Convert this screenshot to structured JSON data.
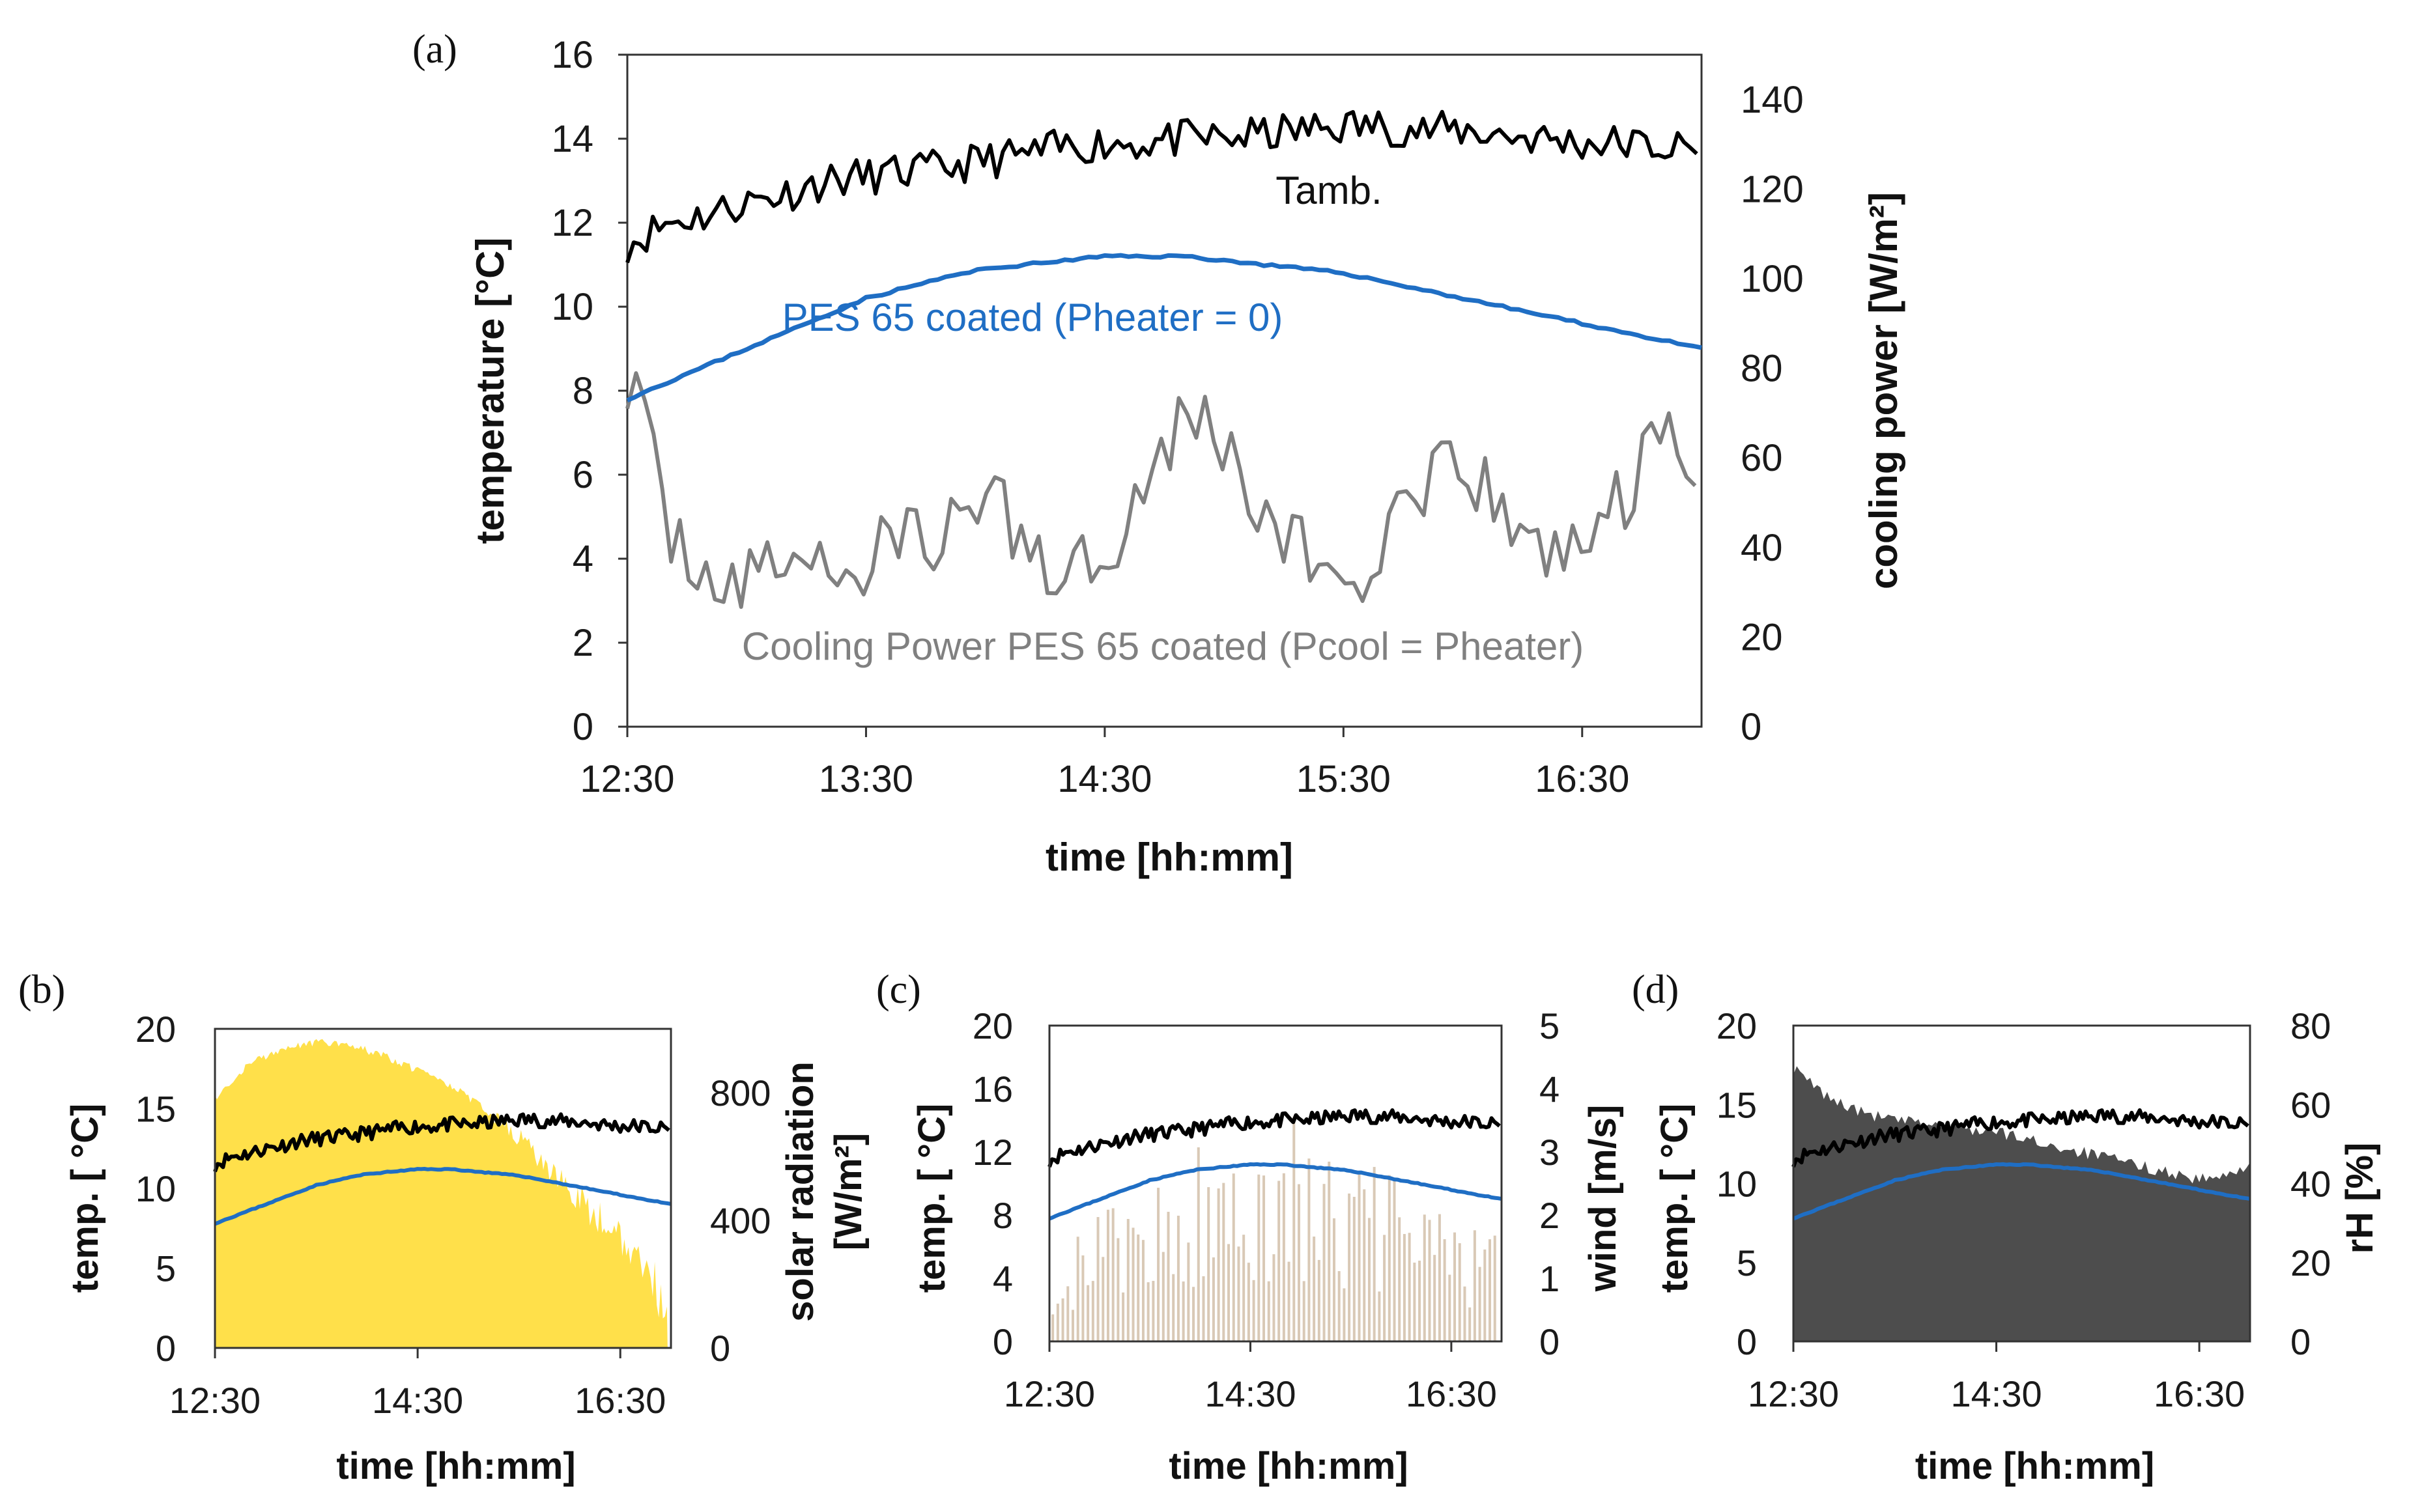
{
  "chart_data": [
    {
      "panel": "(a)",
      "type": "line",
      "xlabel": "time [hh:mm]",
      "ylabel": "temperature [°C]",
      "y2label": "cooling power [W/m²]",
      "xrange_min": [
        0,
        270
      ],
      "xticks": [
        "12:30",
        "13:30",
        "14:30",
        "15:30",
        "16:30"
      ],
      "ylim": [
        0,
        16
      ],
      "yticks": [
        "0",
        "2",
        "4",
        "6",
        "8",
        "10",
        "12",
        "14",
        "16"
      ],
      "y2lim": [
        0,
        150
      ],
      "y2ticks": [
        "0",
        "20",
        "40",
        "60",
        "80",
        "100",
        "120",
        "140"
      ],
      "series": [
        {
          "name": "Tamb.",
          "axis": "y",
          "color": "#000000",
          "x": [
            0,
            10,
            20,
            30,
            40,
            50,
            60,
            70,
            80,
            90,
            100,
            110,
            120,
            130,
            140,
            150,
            160,
            170,
            180,
            190,
            200,
            210,
            220,
            230,
            240,
            250,
            260,
            270
          ],
          "values": [
            11.5,
            12.0,
            12.2,
            12.5,
            12.7,
            13.0,
            13.1,
            13.2,
            13.3,
            13.5,
            13.6,
            13.8,
            13.9,
            13.9,
            14.0,
            14.0,
            14.1,
            14.2,
            14.3,
            14.3,
            14.2,
            14.2,
            14.1,
            14.0,
            13.9,
            13.9,
            13.8,
            13.7
          ]
        },
        {
          "name": "PES 65 coated (Pheater = 0)",
          "axis": "y",
          "color": "#1f6ec4",
          "x": [
            0,
            20,
            40,
            60,
            80,
            90,
            100,
            110,
            120,
            130,
            140,
            150,
            160,
            170,
            180,
            190,
            200,
            210,
            220,
            230,
            240,
            250,
            260,
            270
          ],
          "values": [
            7.8,
            8.6,
            9.4,
            10.2,
            10.7,
            10.9,
            11.0,
            11.1,
            11.2,
            11.2,
            11.2,
            11.1,
            11.0,
            10.9,
            10.8,
            10.6,
            10.4,
            10.2,
            10.0,
            9.8,
            9.6,
            9.4,
            9.2,
            9.0
          ]
        },
        {
          "name": "Cooling Power PES 65 coated (Pcool = Pheater)",
          "axis": "y2",
          "color": "#808080",
          "x": [
            0,
            10,
            20,
            30,
            40,
            50,
            60,
            70,
            80,
            90,
            100,
            110,
            120,
            130,
            140,
            150,
            160,
            170,
            180,
            190,
            200,
            210,
            220,
            230,
            240,
            250,
            260,
            270
          ],
          "values": [
            80,
            45,
            35,
            30,
            40,
            35,
            35,
            45,
            40,
            55,
            40,
            35,
            40,
            55,
            70,
            65,
            45,
            40,
            30,
            40,
            50,
            60,
            45,
            40,
            40,
            50,
            65,
            60
          ]
        }
      ],
      "annotations": [
        "Tamb.",
        "PES 65 coated (Pheater = 0)",
        "Cooling Power PES 65 coated (Pcool = Pheater)"
      ]
    },
    {
      "panel": "(b)",
      "type": "area",
      "xlabel": "time [hh:mm]",
      "ylabel": "temp. [ °C]",
      "y2label": "solar radiation [W/m²]",
      "xticks": [
        "12:30",
        "14:30",
        "16:30"
      ],
      "ylim": [
        0,
        20
      ],
      "yticks": [
        "0",
        "5",
        "10",
        "15",
        "20"
      ],
      "y2lim": [
        0,
        1000
      ],
      "y2ticks": [
        "0",
        "400",
        "800"
      ],
      "area_series": {
        "name": "solar radiation",
        "color": "#ffe04a",
        "x": [
          0,
          20,
          40,
          60,
          80,
          100,
          120,
          140,
          160,
          180,
          200,
          220,
          240,
          260,
          270
        ],
        "values": [
          790,
          900,
          950,
          970,
          960,
          930,
          880,
          830,
          770,
          690,
          600,
          500,
          400,
          280,
          150
        ]
      },
      "series_reference": [
        "Tamb.",
        "PES 65 coated (Pheater = 0)"
      ]
    },
    {
      "panel": "(c)",
      "type": "bar",
      "xlabel": "time [hh:mm]",
      "ylabel": "temp. [ °C]",
      "y2label": "wind [m/s]",
      "xticks": [
        "12:30",
        "14:30",
        "16:30"
      ],
      "ylim": [
        0,
        20
      ],
      "yticks": [
        "0",
        "4",
        "8",
        "12",
        "16",
        "20"
      ],
      "y2lim": [
        0,
        5
      ],
      "y2ticks": [
        "0",
        "1",
        "2",
        "3",
        "4",
        "5"
      ],
      "bar_series": {
        "name": "wind",
        "color": "#d9c9b6",
        "x": [
          0,
          20,
          40,
          60,
          80,
          100,
          120,
          140,
          160,
          180,
          200,
          220,
          240,
          260,
          270
        ],
        "values": [
          1.2,
          1.4,
          1.6,
          1.9,
          2.2,
          2.4,
          2.6,
          2.7,
          2.5,
          2.3,
          2.0,
          1.8,
          1.6,
          1.4,
          1.2
        ]
      },
      "series_reference": [
        "Tamb.",
        "PES 65 coated (Pheater = 0)"
      ]
    },
    {
      "panel": "(d)",
      "type": "area",
      "xlabel": "time [hh:mm]",
      "ylabel": "temp. [ °C]",
      "y2label": "rH [%]",
      "xticks": [
        "12:30",
        "14:30",
        "16:30"
      ],
      "ylim": [
        0,
        20
      ],
      "yticks": [
        "0",
        "5",
        "10",
        "15",
        "20"
      ],
      "y2lim": [
        0,
        80
      ],
      "y2ticks": [
        "0",
        "20",
        "40",
        "60",
        "80"
      ],
      "area_series": {
        "name": "rH",
        "color": "#4d4d4d",
        "x": [
          0,
          20,
          40,
          60,
          80,
          100,
          120,
          140,
          160,
          180,
          200,
          220,
          240,
          260,
          270
        ],
        "values": [
          69,
          62,
          58,
          56,
          55,
          54,
          53,
          51,
          49,
          47,
          45,
          43,
          41,
          42,
          46
        ]
      },
      "series_reference": [
        "Tamb.",
        "PES 65 coated (Pheater = 0)"
      ]
    }
  ]
}
